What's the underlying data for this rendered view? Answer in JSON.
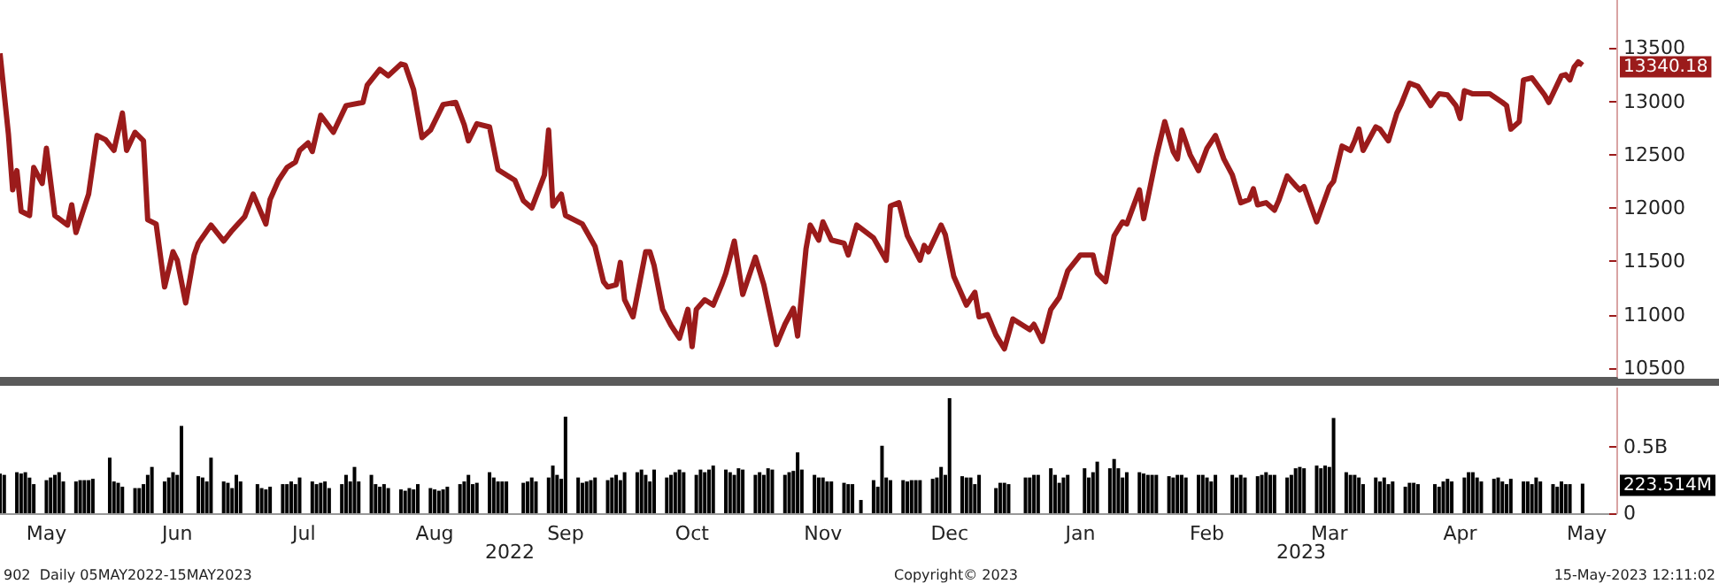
{
  "chart_data": [
    {
      "type": "line",
      "color": "#9b1b1b",
      "xlim": [
        "2022-05-05",
        "2023-05-23"
      ],
      "ylim": [
        10400,
        13950
      ],
      "yticks": [
        10500,
        11000,
        11500,
        12000,
        12500,
        13000,
        13500
      ],
      "tick_labels": "y",
      "annotations": [
        {
          "text": "13340.18",
          "x": "2023-05-15",
          "y": 13340.18
        }
      ],
      "x": [
        "2022-05-05",
        "2022-05-07",
        "2022-05-08",
        "2022-05-09",
        "2022-05-10",
        "2022-05-12",
        "2022-05-13",
        "2022-05-15",
        "2022-05-16",
        "2022-05-18",
        "2022-05-21",
        "2022-05-22",
        "2022-05-23",
        "2022-05-26",
        "2022-05-28",
        "2022-05-30",
        "2022-06-01",
        "2022-06-03",
        "2022-06-04",
        "2022-06-06",
        "2022-06-08",
        "2022-06-09",
        "2022-06-11",
        "2022-06-13",
        "2022-06-15",
        "2022-06-16",
        "2022-06-18",
        "2022-06-20",
        "2022-06-21",
        "2022-06-24",
        "2022-06-27",
        "2022-06-29",
        "2022-07-02",
        "2022-07-04",
        "2022-07-07",
        "2022-07-08",
        "2022-07-10",
        "2022-07-12",
        "2022-07-14",
        "2022-07-15",
        "2022-07-17",
        "2022-07-18",
        "2022-07-20",
        "2022-07-23",
        "2022-07-26",
        "2022-07-30",
        "2022-07-31",
        "2022-08-03",
        "2022-08-05",
        "2022-08-08",
        "2022-08-09",
        "2022-08-11",
        "2022-08-13",
        "2022-08-15",
        "2022-08-18",
        "2022-08-21",
        "2022-08-23",
        "2022-08-24",
        "2022-08-26",
        "2022-08-29",
        "2022-08-31",
        "2022-09-04",
        "2022-09-06",
        "2022-09-08",
        "2022-09-11",
        "2022-09-12",
        "2022-09-13",
        "2022-09-15",
        "2022-09-16",
        "2022-09-20",
        "2022-09-23",
        "2022-09-25",
        "2022-09-26",
        "2022-09-28",
        "2022-09-29",
        "2022-09-30",
        "2022-10-02",
        "2022-10-05",
        "2022-10-06",
        "2022-10-07",
        "2022-10-09",
        "2022-10-11",
        "2022-10-13",
        "2022-10-15",
        "2022-10-16",
        "2022-10-17",
        "2022-10-19",
        "2022-10-21",
        "2022-10-23",
        "2022-10-24",
        "2022-10-26",
        "2022-10-28",
        "2022-10-31",
        "2022-11-02",
        "2022-11-05",
        "2022-11-07",
        "2022-11-09",
        "2022-11-10",
        "2022-11-12",
        "2022-11-13",
        "2022-11-15",
        "2022-11-16",
        "2022-11-18",
        "2022-11-21",
        "2022-11-22",
        "2022-11-24",
        "2022-11-28",
        "2022-12-01",
        "2022-12-02",
        "2022-12-04",
        "2022-12-06",
        "2022-12-09",
        "2022-12-10",
        "2022-12-11",
        "2022-12-14",
        "2022-12-15",
        "2022-12-17",
        "2022-12-20",
        "2022-12-22",
        "2022-12-23",
        "2022-12-25",
        "2022-12-27",
        "2022-12-29",
        "2022-12-31",
        "2023-01-04",
        "2023-01-05",
        "2023-01-07",
        "2023-01-09",
        "2023-01-11",
        "2023-01-13",
        "2023-01-16",
        "2023-01-19",
        "2023-01-20",
        "2023-01-22",
        "2023-01-24",
        "2023-01-26",
        "2023-01-27",
        "2023-01-30",
        "2023-01-31",
        "2023-02-03",
        "2023-02-05",
        "2023-02-07",
        "2023-02-08",
        "2023-02-09",
        "2023-02-11",
        "2023-02-13",
        "2023-02-15",
        "2023-02-17",
        "2023-02-19",
        "2023-02-21",
        "2023-02-23",
        "2023-02-25",
        "2023-02-26",
        "2023-02-27",
        "2023-03-01",
        "2023-03-03",
        "2023-03-04",
        "2023-03-06",
        "2023-03-08",
        "2023-03-09",
        "2023-03-10",
        "2023-03-13",
        "2023-03-16",
        "2023-03-17",
        "2023-03-19",
        "2023-03-21",
        "2023-03-22",
        "2023-03-23",
        "2023-03-24",
        "2023-03-27",
        "2023-03-28",
        "2023-03-30",
        "2023-04-01",
        "2023-04-02",
        "2023-04-04",
        "2023-04-06",
        "2023-04-09",
        "2023-04-10",
        "2023-04-11",
        "2023-04-13",
        "2023-04-15",
        "2023-04-16",
        "2023-04-17",
        "2023-04-19",
        "2023-04-23",
        "2023-04-26",
        "2023-04-27",
        "2023-04-28",
        "2023-04-30",
        "2023-05-01",
        "2023-05-03",
        "2023-05-06",
        "2023-05-07",
        "2023-05-10",
        "2023-05-11",
        "2023-05-12",
        "2023-05-13",
        "2023-05-14",
        "2023-05-15"
      ],
      "values": [
        13450,
        12690,
        12170,
        12350,
        11970,
        11930,
        12380,
        12230,
        12560,
        11930,
        11840,
        12030,
        11770,
        12130,
        12680,
        12640,
        12540,
        12890,
        12540,
        12710,
        12630,
        11890,
        11850,
        11260,
        11590,
        11510,
        11110,
        11560,
        11670,
        11840,
        11690,
        11790,
        11920,
        12130,
        11850,
        12080,
        12260,
        12380,
        12430,
        12540,
        12610,
        12530,
        12870,
        12710,
        12960,
        12990,
        13150,
        13300,
        13240,
        13350,
        13340,
        13110,
        12660,
        12730,
        12970,
        12990,
        12780,
        12630,
        12790,
        12760,
        12360,
        12260,
        12070,
        12000,
        12310,
        12730,
        12020,
        12130,
        11930,
        11850,
        11640,
        11310,
        11260,
        11280,
        11490,
        11140,
        10980,
        11590,
        11590,
        11460,
        11050,
        10900,
        10780,
        11050,
        10700,
        11050,
        11140,
        11090,
        11280,
        11390,
        11690,
        11190,
        11540,
        11280,
        10720,
        10910,
        11060,
        10800,
        11620,
        11840,
        11700,
        11870,
        11700,
        11670,
        11560,
        11840,
        11720,
        11510,
        12020,
        12050,
        11740,
        11510,
        11650,
        11590,
        11840,
        11750,
        11360,
        11090,
        11210,
        10980,
        11000,
        10810,
        10680,
        10960,
        10860,
        10910,
        10750,
        11050,
        11160,
        11410,
        11560,
        11560,
        11390,
        11310,
        11740,
        11870,
        11850,
        12170,
        11900,
        12480,
        12810,
        12530,
        12460,
        12730,
        12500,
        12350,
        12560,
        12680,
        12460,
        12310,
        12050,
        12080,
        12180,
        12030,
        12050,
        11980,
        12070,
        12300,
        12210,
        12170,
        12200,
        11870,
        12200,
        12250,
        12580,
        12540,
        12630,
        12740,
        12540,
        12760,
        12740,
        12630,
        12890,
        12970,
        13170,
        13140,
        12960,
        13020,
        13070,
        13060,
        12960,
        12840,
        13100,
        13070,
        13070,
        12990,
        12960,
        12740,
        12810,
        13200,
        13220,
        13060,
        12990,
        13240,
        13250,
        13200,
        13320,
        13370,
        13340.18
      ]
    },
    {
      "type": "bar",
      "color": "#000000",
      "xlim": [
        "2022-05-05",
        "2023-05-23"
      ],
      "ylim": [
        0,
        0.95
      ],
      "yticks": [
        {
          "value": 0,
          "label": "0"
        },
        {
          "value": 0.5,
          "label": "0.5B"
        }
      ],
      "xticks": [
        {
          "value": "2022-05-16",
          "label": "May"
        },
        {
          "value": "2022-06-16",
          "label": "Jun"
        },
        {
          "value": "2022-07-16",
          "label": "Jul"
        },
        {
          "value": "2022-08-16",
          "label": "Aug"
        },
        {
          "value": "2022-09-16",
          "label": "Sep"
        },
        {
          "value": "2022-10-16",
          "label": "Oct"
        },
        {
          "value": "2022-11-16",
          "label": "Nov"
        },
        {
          "value": "2022-12-16",
          "label": "Dec"
        },
        {
          "value": "2023-01-16",
          "label": "Jan"
        },
        {
          "value": "2023-02-15",
          "label": "Feb"
        },
        {
          "value": "2023-03-16",
          "label": "Mar"
        },
        {
          "value": "2023-04-16",
          "label": "Apr"
        },
        {
          "value": "2023-05-16",
          "label": "May"
        }
      ],
      "annotations": [
        {
          "text": "223.514M",
          "x": "2023-05-15",
          "y": 0.223514
        },
        "2022",
        "2023",
        "902  Daily 05MAY2022-15MAY2023",
        "Copyright© 2023",
        "15-May-2023 12:11:02"
      ],
      "x": [
        "2022-05-05",
        "2022-05-06",
        "2022-05-09",
        "2022-05-10",
        "2022-05-11",
        "2022-05-12",
        "2022-05-13",
        "2022-05-16",
        "2022-05-17",
        "2022-05-18",
        "2022-05-19",
        "2022-05-20",
        "2022-05-23",
        "2022-05-24",
        "2022-05-25",
        "2022-05-26",
        "2022-05-27",
        "2022-05-31",
        "2022-06-01",
        "2022-06-02",
        "2022-06-03",
        "2022-06-06",
        "2022-06-07",
        "2022-06-08",
        "2022-06-09",
        "2022-06-10",
        "2022-06-13",
        "2022-06-14",
        "2022-06-15",
        "2022-06-16",
        "2022-06-17",
        "2022-06-21",
        "2022-06-22",
        "2022-06-23",
        "2022-06-24",
        "2022-06-27",
        "2022-06-28",
        "2022-06-29",
        "2022-06-30",
        "2022-07-01",
        "2022-07-05",
        "2022-07-06",
        "2022-07-07",
        "2022-07-08",
        "2022-07-11",
        "2022-07-12",
        "2022-07-13",
        "2022-07-14",
        "2022-07-15",
        "2022-07-18",
        "2022-07-19",
        "2022-07-20",
        "2022-07-21",
        "2022-07-22",
        "2022-07-25",
        "2022-07-26",
        "2022-07-27",
        "2022-07-28",
        "2022-07-29",
        "2022-08-01",
        "2022-08-02",
        "2022-08-03",
        "2022-08-04",
        "2022-08-05",
        "2022-08-08",
        "2022-08-09",
        "2022-08-10",
        "2022-08-11",
        "2022-08-12",
        "2022-08-15",
        "2022-08-16",
        "2022-08-17",
        "2022-08-18",
        "2022-08-19",
        "2022-08-22",
        "2022-08-23",
        "2022-08-24",
        "2022-08-25",
        "2022-08-26",
        "2022-08-29",
        "2022-08-30",
        "2022-08-31",
        "2022-09-01",
        "2022-09-02",
        "2022-09-06",
        "2022-09-07",
        "2022-09-08",
        "2022-09-09",
        "2022-09-12",
        "2022-09-13",
        "2022-09-14",
        "2022-09-15",
        "2022-09-16",
        "2022-09-19",
        "2022-09-20",
        "2022-09-21",
        "2022-09-22",
        "2022-09-23",
        "2022-09-26",
        "2022-09-27",
        "2022-09-28",
        "2022-09-29",
        "2022-09-30",
        "2022-10-03",
        "2022-10-04",
        "2022-10-05",
        "2022-10-06",
        "2022-10-07",
        "2022-10-10",
        "2022-10-11",
        "2022-10-12",
        "2022-10-13",
        "2022-10-14",
        "2022-10-17",
        "2022-10-18",
        "2022-10-19",
        "2022-10-20",
        "2022-10-21",
        "2022-10-24",
        "2022-10-25",
        "2022-10-26",
        "2022-10-27",
        "2022-10-28",
        "2022-10-31",
        "2022-11-01",
        "2022-11-02",
        "2022-11-03",
        "2022-11-04",
        "2022-11-07",
        "2022-11-08",
        "2022-11-09",
        "2022-11-10",
        "2022-11-11",
        "2022-11-14",
        "2022-11-15",
        "2022-11-16",
        "2022-11-17",
        "2022-11-18",
        "2022-11-21",
        "2022-11-22",
        "2022-11-23",
        "2022-11-25",
        "2022-11-28",
        "2022-11-29",
        "2022-11-30",
        "2022-12-01",
        "2022-12-02",
        "2022-12-05",
        "2022-12-06",
        "2022-12-07",
        "2022-12-08",
        "2022-12-09",
        "2022-12-12",
        "2022-12-13",
        "2022-12-14",
        "2022-12-15",
        "2022-12-16",
        "2022-12-19",
        "2022-12-20",
        "2022-12-21",
        "2022-12-22",
        "2022-12-23",
        "2022-12-27",
        "2022-12-28",
        "2022-12-29",
        "2022-12-30",
        "2023-01-03",
        "2023-01-04",
        "2023-01-05",
        "2023-01-06",
        "2023-01-09",
        "2023-01-10",
        "2023-01-11",
        "2023-01-12",
        "2023-01-13",
        "2023-01-17",
        "2023-01-18",
        "2023-01-19",
        "2023-01-20",
        "2023-01-23",
        "2023-01-24",
        "2023-01-25",
        "2023-01-26",
        "2023-01-27",
        "2023-01-30",
        "2023-01-31",
        "2023-02-01",
        "2023-02-02",
        "2023-02-03",
        "2023-02-06",
        "2023-02-07",
        "2023-02-08",
        "2023-02-09",
        "2023-02-10",
        "2023-02-13",
        "2023-02-14",
        "2023-02-15",
        "2023-02-16",
        "2023-02-17",
        "2023-02-21",
        "2023-02-22",
        "2023-02-23",
        "2023-02-24",
        "2023-02-27",
        "2023-02-28",
        "2023-03-01",
        "2023-03-02",
        "2023-03-03",
        "2023-03-06",
        "2023-03-07",
        "2023-03-08",
        "2023-03-09",
        "2023-03-10",
        "2023-03-13",
        "2023-03-14",
        "2023-03-15",
        "2023-03-16",
        "2023-03-17",
        "2023-03-20",
        "2023-03-21",
        "2023-03-22",
        "2023-03-23",
        "2023-03-24",
        "2023-03-27",
        "2023-03-28",
        "2023-03-29",
        "2023-03-30",
        "2023-03-31",
        "2023-04-03",
        "2023-04-04",
        "2023-04-05",
        "2023-04-06",
        "2023-04-10",
        "2023-04-11",
        "2023-04-12",
        "2023-04-13",
        "2023-04-14",
        "2023-04-17",
        "2023-04-18",
        "2023-04-19",
        "2023-04-20",
        "2023-04-21",
        "2023-04-24",
        "2023-04-25",
        "2023-04-26",
        "2023-04-27",
        "2023-04-28",
        "2023-05-01",
        "2023-05-02",
        "2023-05-03",
        "2023-05-04",
        "2023-05-05",
        "2023-05-08",
        "2023-05-09",
        "2023-05-10",
        "2023-05-11",
        "2023-05-12",
        "2023-05-15"
      ],
      "values": [
        0.3,
        0.29,
        0.31,
        0.3,
        0.31,
        0.27,
        0.22,
        0.25,
        0.27,
        0.29,
        0.31,
        0.24,
        0.24,
        0.25,
        0.25,
        0.25,
        0.26,
        0.42,
        0.24,
        0.23,
        0.2,
        0.19,
        0.19,
        0.22,
        0.29,
        0.35,
        0.24,
        0.27,
        0.31,
        0.29,
        0.66,
        0.28,
        0.27,
        0.24,
        0.42,
        0.24,
        0.23,
        0.19,
        0.29,
        0.24,
        0.22,
        0.19,
        0.18,
        0.2,
        0.22,
        0.22,
        0.24,
        0.22,
        0.27,
        0.24,
        0.22,
        0.23,
        0.24,
        0.19,
        0.22,
        0.29,
        0.24,
        0.35,
        0.24,
        0.29,
        0.22,
        0.2,
        0.22,
        0.19,
        0.18,
        0.17,
        0.19,
        0.18,
        0.22,
        0.19,
        0.18,
        0.17,
        0.18,
        0.2,
        0.22,
        0.24,
        0.29,
        0.22,
        0.23,
        0.31,
        0.27,
        0.24,
        0.24,
        0.24,
        0.23,
        0.24,
        0.27,
        0.24,
        0.27,
        0.36,
        0.29,
        0.26,
        0.73,
        0.27,
        0.23,
        0.24,
        0.25,
        0.27,
        0.25,
        0.27,
        0.29,
        0.25,
        0.31,
        0.31,
        0.33,
        0.29,
        0.24,
        0.33,
        0.27,
        0.29,
        0.31,
        0.33,
        0.31,
        0.29,
        0.33,
        0.31,
        0.33,
        0.36,
        0.33,
        0.31,
        0.29,
        0.34,
        0.33,
        0.29,
        0.31,
        0.29,
        0.34,
        0.33,
        0.29,
        0.31,
        0.32,
        0.46,
        0.33,
        0.29,
        0.27,
        0.27,
        0.24,
        0.24,
        0.23,
        0.22,
        0.22,
        0.1,
        0.25,
        0.2,
        0.51,
        0.27,
        0.25,
        0.25,
        0.24,
        0.25,
        0.25,
        0.25,
        0.26,
        0.27,
        0.35,
        0.29,
        0.87,
        0.28,
        0.27,
        0.27,
        0.22,
        0.29,
        0.19,
        0.23,
        0.23,
        0.22,
        0.27,
        0.27,
        0.29,
        0.29,
        0.34,
        0.29,
        0.23,
        0.27,
        0.29,
        0.34,
        0.27,
        0.31,
        0.39,
        0.34,
        0.41,
        0.34,
        0.27,
        0.31,
        0.31,
        0.3,
        0.29,
        0.29,
        0.29,
        0.28,
        0.27,
        0.29,
        0.29,
        0.27,
        0.29,
        0.29,
        0.27,
        0.24,
        0.29,
        0.29,
        0.27,
        0.29,
        0.27,
        0.28,
        0.29,
        0.31,
        0.29,
        0.29,
        0.27,
        0.29,
        0.34,
        0.35,
        0.34,
        0.36,
        0.34,
        0.36,
        0.35,
        0.72,
        0.31,
        0.29,
        0.29,
        0.27,
        0.22,
        0.27,
        0.24,
        0.27,
        0.22,
        0.24,
        0.2,
        0.23,
        0.23,
        0.22,
        0.22,
        0.2,
        0.24,
        0.26,
        0.24,
        0.27,
        0.31,
        0.31,
        0.27,
        0.24,
        0.26,
        0.27,
        0.24,
        0.22,
        0.26,
        0.24,
        0.24,
        0.22,
        0.27,
        0.24,
        0.22,
        0.2,
        0.24,
        0.22,
        0.22,
        0.223514
      ]
    }
  ]
}
